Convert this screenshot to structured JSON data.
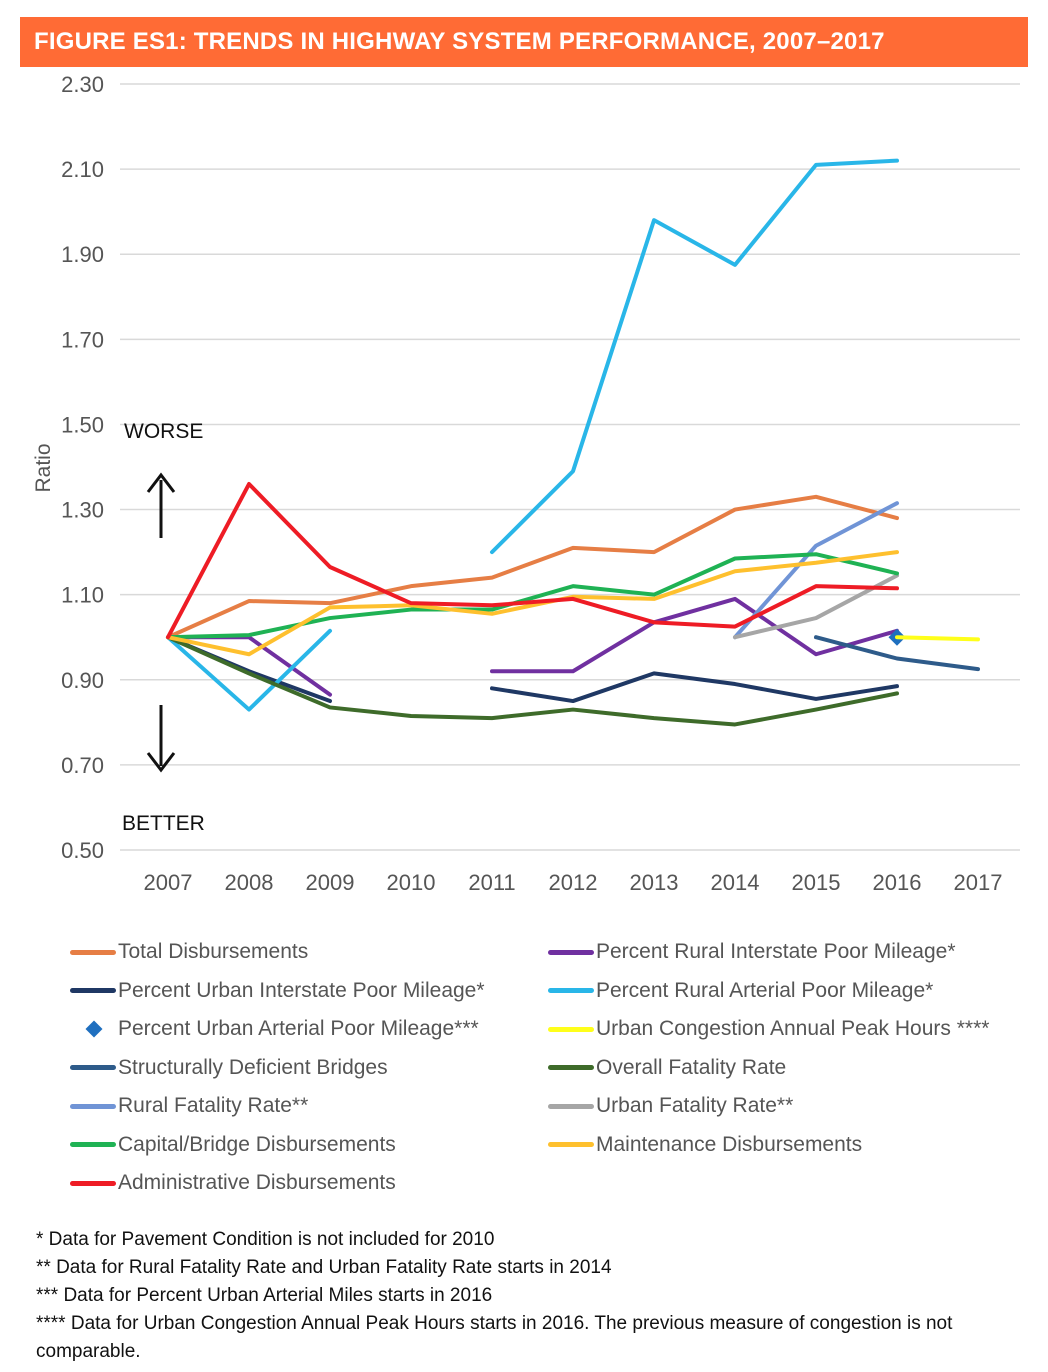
{
  "figure_title": "FIGURE ES1: TRENDS IN HIGHWAY SYSTEM PERFORMANCE, 2007–2017",
  "colors": {
    "banner": "#ff6b35"
  },
  "chart_data": {
    "type": "line",
    "title": "FIGURE ES1: TRENDS IN HIGHWAY SYSTEM PERFORMANCE, 2007–2017",
    "xlabel": "",
    "ylabel": "Ratio",
    "ylim": [
      0.5,
      2.3
    ],
    "ytick_labels": [
      "0.50",
      "0.70",
      "0.90",
      "1.10",
      "1.30",
      "1.50",
      "1.70",
      "1.90",
      "2.10",
      "2.30"
    ],
    "x": [
      2007,
      2008,
      2009,
      2010,
      2011,
      2012,
      2013,
      2014,
      2015,
      2016,
      2017
    ],
    "xtick_labels": [
      "2007",
      "2008",
      "2009",
      "2010",
      "2011",
      "2012",
      "2013",
      "2014",
      "2015",
      "2016",
      "2017"
    ],
    "grid": "horizontal",
    "annotations": {
      "worse": "WORSE",
      "better": "BETTER"
    },
    "series": [
      {
        "name": "Total Disbursements",
        "color": "#e67e45",
        "values": [
          1.0,
          1.085,
          1.08,
          1.12,
          1.14,
          1.21,
          1.2,
          1.3,
          1.33,
          1.28,
          null
        ]
      },
      {
        "name": "Percent Rural Interstate Poor Mileage*",
        "color": "#7030a0",
        "values": [
          1.0,
          1.0,
          0.865,
          null,
          0.92,
          0.92,
          1.035,
          1.09,
          0.96,
          1.015,
          null
        ]
      },
      {
        "name": "Percent Urban Interstate Poor Mileage*",
        "color": "#1f3864",
        "values": [
          1.0,
          0.92,
          0.85,
          null,
          0.88,
          0.85,
          0.915,
          0.89,
          0.855,
          0.885,
          null
        ]
      },
      {
        "name": "Percent Rural Arterial Poor Mileage*",
        "color": "#29b6e8",
        "values": [
          1.0,
          0.83,
          1.015,
          null,
          1.2,
          1.39,
          1.98,
          1.875,
          2.11,
          2.12,
          null
        ]
      },
      {
        "name": "Percent Urban Arterial Poor Mileage***",
        "color": "#1f6fbf",
        "marker": "diamond",
        "values": [
          null,
          null,
          null,
          null,
          null,
          null,
          null,
          null,
          null,
          1.0,
          null
        ]
      },
      {
        "name": "Urban Congestion Annual Peak Hours ****",
        "color": "#ffff1a",
        "values": [
          null,
          null,
          null,
          null,
          null,
          null,
          null,
          null,
          null,
          1.0,
          0.995
        ]
      },
      {
        "name": "Structurally Deficient Bridges",
        "color": "#2e5b8a",
        "values": [
          null,
          null,
          null,
          null,
          null,
          null,
          null,
          null,
          1.0,
          0.95,
          0.925
        ]
      },
      {
        "name": "Overall Fatality Rate",
        "color": "#3e6b2a",
        "values": [
          1.0,
          0.915,
          0.835,
          0.815,
          0.81,
          0.83,
          0.81,
          0.795,
          0.83,
          0.868,
          null
        ]
      },
      {
        "name": "Rural Fatality Rate**",
        "color": "#7094d6",
        "values": [
          null,
          null,
          null,
          null,
          null,
          null,
          null,
          1.0,
          1.215,
          1.315,
          null
        ]
      },
      {
        "name": "Urban Fatality Rate**",
        "color": "#a6a6a6",
        "values": [
          null,
          null,
          null,
          null,
          null,
          null,
          null,
          1.0,
          1.045,
          1.145,
          null
        ]
      },
      {
        "name": "Capital/Bridge Disbursements",
        "color": "#1fb254",
        "values": [
          1.0,
          1.005,
          1.045,
          1.065,
          1.065,
          1.12,
          1.1,
          1.185,
          1.195,
          1.15,
          null
        ]
      },
      {
        "name": "Maintenance Disbursements",
        "color": "#fec02e",
        "values": [
          1.0,
          0.96,
          1.07,
          1.075,
          1.055,
          1.095,
          1.09,
          1.155,
          1.175,
          1.2,
          null
        ]
      },
      {
        "name": "Administrative Disbursements",
        "color": "#ee1c25",
        "values": [
          1.0,
          1.36,
          1.165,
          1.08,
          1.075,
          1.09,
          1.035,
          1.025,
          1.12,
          1.115,
          null
        ]
      }
    ]
  },
  "footnotes": [
    "* Data for Pavement Condition is not included for 2010",
    "** Data for Rural Fatality Rate and Urban Fatality Rate starts in 2014",
    "*** Data for Percent Urban Arterial Miles starts in 2016",
    "**** Data for Urban Congestion Annual Peak Hours starts in 2016. The previous measure of congestion is not comparable."
  ]
}
